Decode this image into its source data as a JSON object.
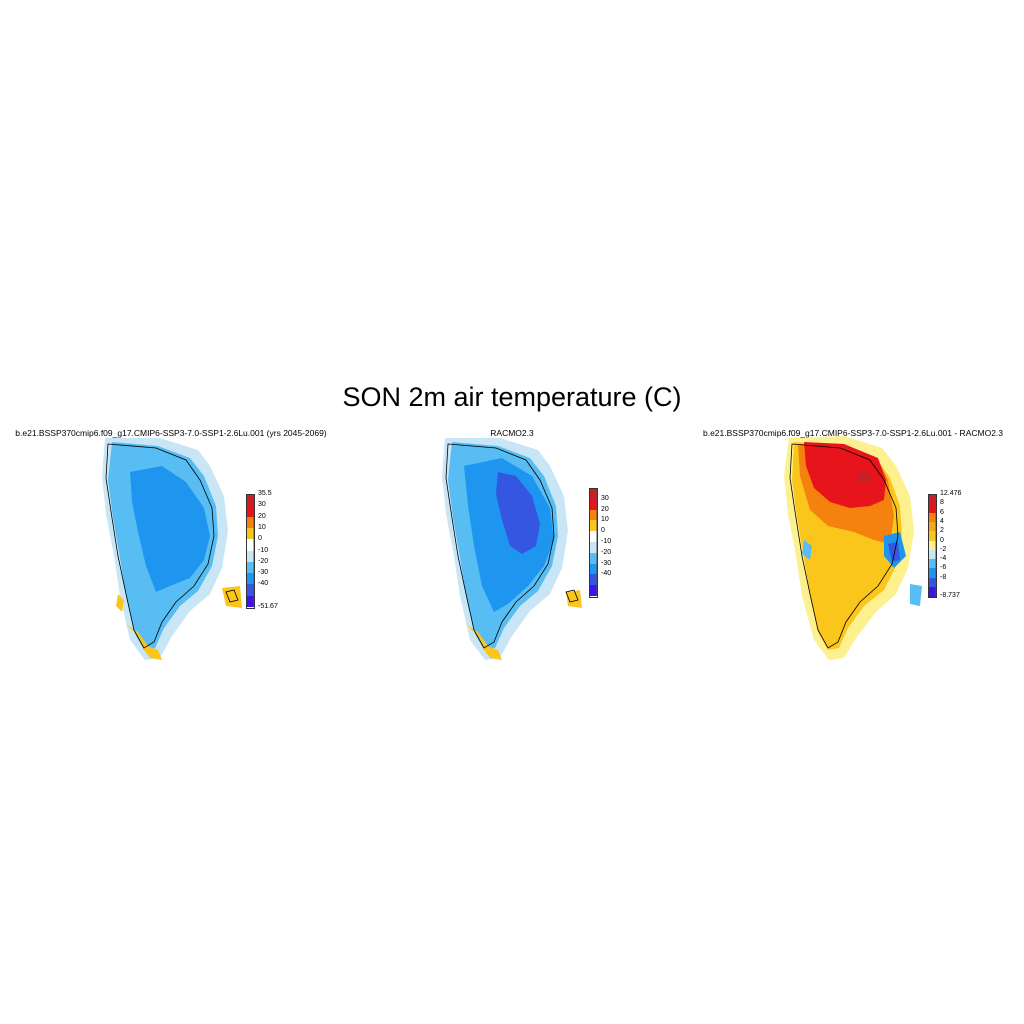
{
  "title": "SON 2m air temperature (C)",
  "panels": [
    {
      "title": "b.e21.BSSP370cmip6.f09_g17.CMIP6-SSP3-7.0-SSP1-2.6Lu.001 (yrs 2045-2069)",
      "colorbar": {
        "labels": [
          "35.5",
          "30",
          "20",
          "10",
          "0",
          "-10",
          "-20",
          "-30",
          "-40",
          "-51.67"
        ],
        "colors": [
          "#c7202a",
          "#e8141b",
          "#f5820e",
          "#fbc61c",
          "#ffffff",
          "#c9e6f6",
          "#58bdf3",
          "#1e96f0",
          "#3456e0",
          "#3f13e8"
        ]
      }
    },
    {
      "title": "RACMO2.3",
      "colorbar": {
        "labels": [
          "30",
          "20",
          "10",
          "0",
          "-10",
          "-20",
          "-30",
          "-40"
        ],
        "colors": [
          "#c7202a",
          "#e8141b",
          "#f5820e",
          "#fbc61c",
          "#ffffff",
          "#c9e6f6",
          "#58bdf3",
          "#1e96f0",
          "#3456e0",
          "#3f13e8"
        ]
      }
    },
    {
      "title": "b.e21.BSSP370cmip6.f09_g17.CMIP6-SSP3-7.0-SSP1-2.6Lu.001 - RACMO2.3",
      "colorbar": {
        "labels": [
          "12.476",
          "8",
          "6",
          "4",
          "2",
          "0",
          "-2",
          "-4",
          "-6",
          "-8",
          "-8.737"
        ],
        "colors": [
          "#c7202a",
          "#e8141b",
          "#f5820e",
          "#f7a81a",
          "#fbc61c",
          "#fdf08f",
          "#c9e6f6",
          "#58bdf3",
          "#1e96f0",
          "#3456e0",
          "#3f13e8"
        ]
      }
    }
  ],
  "colors": {
    "coastline": "#000000"
  }
}
